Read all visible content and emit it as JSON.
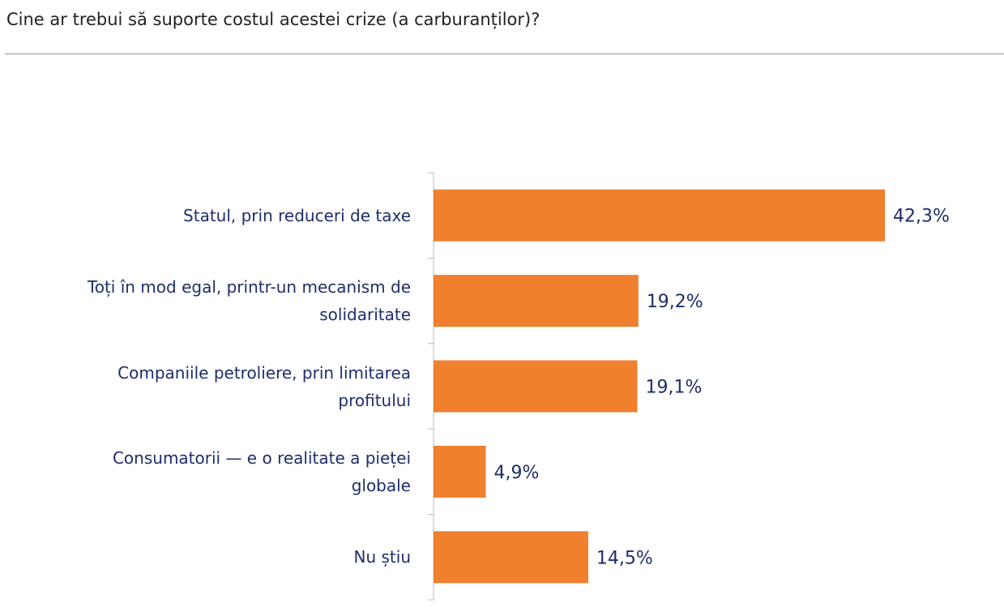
{
  "chart_data": {
    "type": "bar",
    "orientation": "horizontal",
    "title": "Cine ar trebui să suporte costul acestei crize (a carburanților)?",
    "categories": [
      "Statul, prin reduceri de taxe",
      "Toți în mod egal, printr-un mecanism de solidaritate",
      "Companiile petroliere, prin limitarea profitului",
      "Consumatorii — e o realitate a pieței globale",
      "Nu știu"
    ],
    "values": [
      42.3,
      19.2,
      19.1,
      4.9,
      14.5
    ],
    "value_labels": [
      "42,3%",
      "19,2%",
      "19,1%",
      "4,9%",
      "14,5%"
    ],
    "color": "#f07f2e"
  }
}
